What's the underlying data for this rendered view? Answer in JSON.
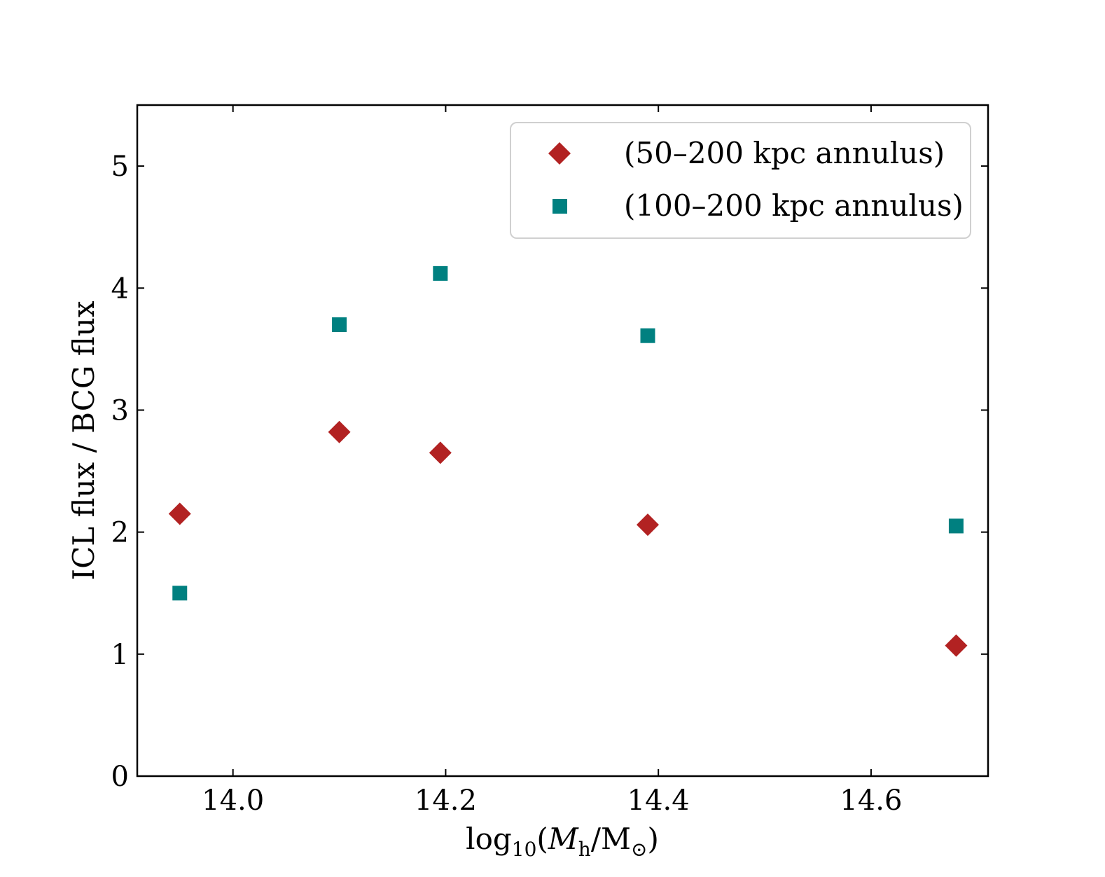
{
  "chart_data": {
    "type": "scatter",
    "title": "",
    "xlabel": "log10(Mh/M⊙)",
    "ylabel": "ICL flux / BCG flux",
    "xlim": [
      13.91,
      14.71
    ],
    "ylim": [
      0,
      5.5
    ],
    "x_ticks": [
      14.0,
      14.2,
      14.4,
      14.6
    ],
    "x_tick_labels": [
      "14.0",
      "14.2",
      "14.4",
      "14.6"
    ],
    "y_ticks": [
      0,
      1,
      2,
      3,
      4,
      5
    ],
    "y_tick_labels": [
      "0",
      "1",
      "2",
      "3",
      "4",
      "5"
    ],
    "grid": false,
    "legend_position": "top-right",
    "series": [
      {
        "name": "(50–200 kpc annulus)",
        "marker": "diamond",
        "color": "#b22222",
        "x": [
          13.95,
          14.1,
          14.195,
          14.39,
          14.68
        ],
        "y": [
          2.15,
          2.82,
          2.65,
          2.06,
          1.07
        ]
      },
      {
        "name": "(100–200 kpc annulus)",
        "marker": "square",
        "color": "#008080",
        "x": [
          13.95,
          14.1,
          14.195,
          14.39,
          14.68
        ],
        "y": [
          1.5,
          3.7,
          4.12,
          3.61,
          2.05
        ]
      }
    ]
  }
}
